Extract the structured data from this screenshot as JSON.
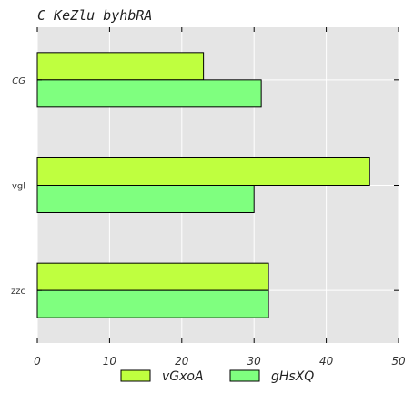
{
  "chart_data": {
    "type": "bar",
    "orientation": "horizontal",
    "title": "C KeZlu byhbRA",
    "xlabel": "",
    "ylabel": "",
    "categories": [
      "CG",
      "vgl",
      "zzc"
    ],
    "italic_categories": [
      "CG"
    ],
    "series": [
      {
        "name": "vGxoA",
        "values": [
          23,
          46,
          32
        ],
        "color": "#bfff3f"
      },
      {
        "name": "gHsXQ",
        "values": [
          31,
          30,
          32
        ],
        "color": "#7fff7f"
      }
    ],
    "xlim": [
      0,
      50
    ],
    "xticks": [
      0,
      10,
      20,
      30,
      40,
      50
    ],
    "grid": true,
    "legend_position": "bottom-center"
  },
  "colors": {
    "plot_background": "#e5e5e5",
    "grid": "#ffffff"
  }
}
